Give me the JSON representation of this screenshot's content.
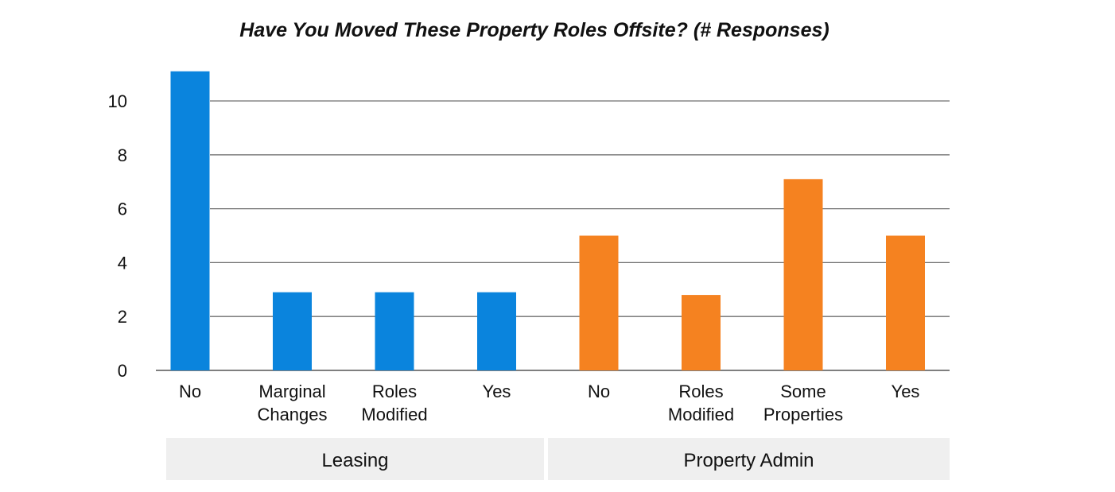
{
  "chart_data": {
    "type": "bar",
    "title": "Have You Moved These Property Roles Offsite? (# Responses)",
    "xlabel": "",
    "ylabel": "",
    "ylim": [
      0,
      11.5
    ],
    "yticks": [
      0,
      2,
      4,
      6,
      8,
      10
    ],
    "grid": true,
    "groups": [
      {
        "label": "Leasing",
        "color": "#0a84dd",
        "categories": [
          [
            "No"
          ],
          [
            "Marginal",
            "Changes"
          ],
          [
            "Roles",
            "Modified"
          ],
          [
            "Yes"
          ]
        ],
        "values": [
          11.1,
          2.9,
          2.9,
          2.9
        ]
      },
      {
        "label": "Property Admin",
        "color": "#f58220",
        "categories": [
          [
            "No"
          ],
          [
            "Roles",
            "Modified"
          ],
          [
            "Some",
            "Properties"
          ],
          [
            "Yes"
          ]
        ],
        "values": [
          5.0,
          2.8,
          7.1,
          5.0
        ]
      }
    ]
  }
}
